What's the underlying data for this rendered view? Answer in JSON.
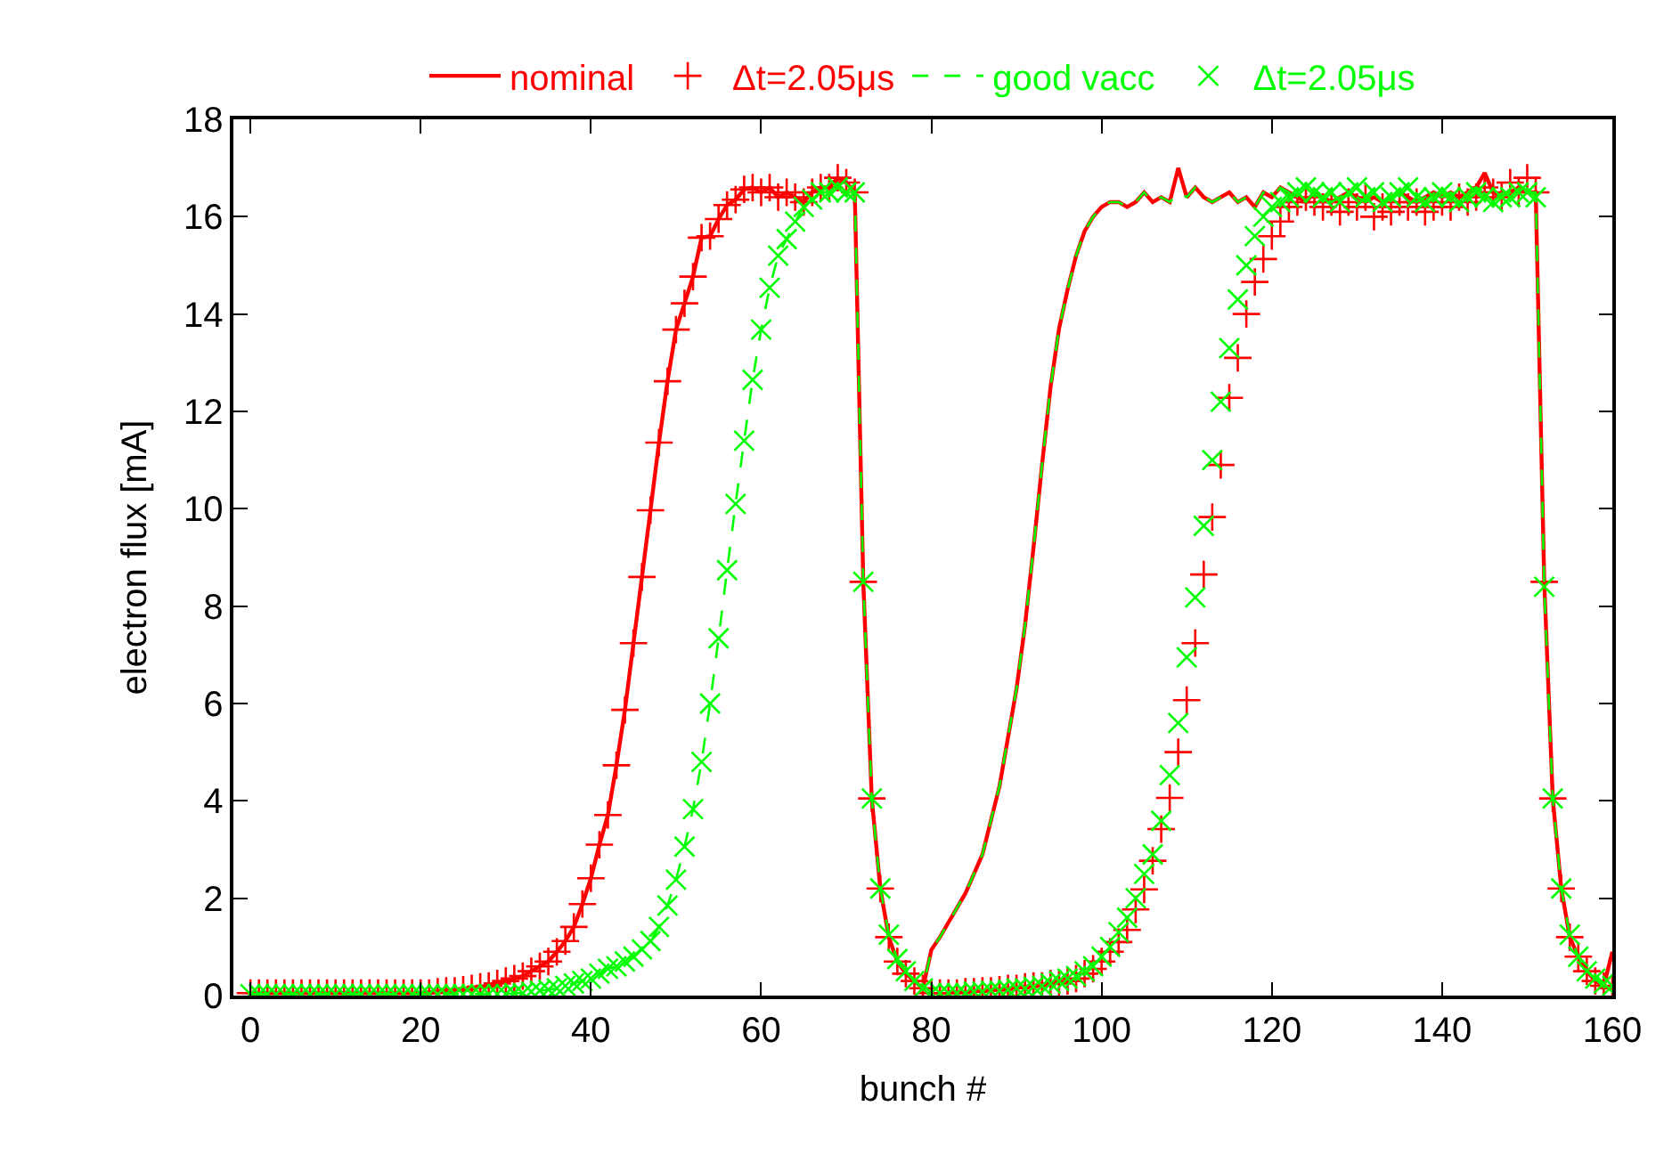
{
  "chart_data": {
    "type": "line",
    "xlabel": "bunch #",
    "ylabel": "electron flux [mA]",
    "xlim": [
      -2,
      160
    ],
    "ylim": [
      0,
      18
    ],
    "xticks": [
      0,
      20,
      40,
      60,
      80,
      100,
      120,
      140,
      160
    ],
    "yticks": [
      0,
      2,
      4,
      6,
      8,
      10,
      12,
      14,
      16,
      18
    ],
    "legend": "top",
    "x": [
      0,
      1,
      2,
      3,
      4,
      5,
      6,
      7,
      8,
      9,
      10,
      11,
      12,
      13,
      14,
      15,
      16,
      17,
      18,
      19,
      20,
      21,
      22,
      23,
      24,
      25,
      26,
      27,
      28,
      29,
      30,
      31,
      32,
      33,
      34,
      35,
      36,
      37,
      38,
      39,
      40,
      41,
      42,
      43,
      44,
      45,
      46,
      47,
      48,
      49,
      50,
      51,
      52,
      53,
      54,
      55,
      56,
      57,
      58,
      59,
      60,
      61,
      62,
      63,
      64,
      65,
      66,
      67,
      68,
      69,
      70,
      71,
      72,
      73,
      74,
      75,
      76,
      77,
      78,
      79,
      80,
      81,
      82,
      83,
      84,
      85,
      86,
      87,
      88,
      89,
      90,
      91,
      92,
      93,
      94,
      95,
      96,
      97,
      98,
      99,
      100,
      101,
      102,
      103,
      104,
      105,
      106,
      107,
      108,
      109,
      110,
      111,
      112,
      113,
      114,
      115,
      116,
      117,
      118,
      119,
      120,
      121,
      122,
      123,
      124,
      125,
      126,
      127,
      128,
      129,
      130,
      131,
      132,
      133,
      134,
      135,
      136,
      137,
      138,
      139,
      140,
      141,
      142,
      143,
      144,
      145,
      146,
      147,
      148,
      149,
      150,
      151,
      152,
      153,
      154,
      155,
      156,
      157,
      158,
      159,
      160
    ],
    "series": [
      {
        "name": "nominal",
        "type": "line",
        "color": "#ff0000",
        "marker": "none",
        "line_style": "solid",
        "values": [
          0.05,
          0.05,
          0.05,
          0.05,
          0.05,
          0.05,
          0.05,
          0.05,
          0.05,
          0.05,
          0.05,
          0.05,
          0.05,
          0.05,
          0.05,
          0.05,
          0.05,
          0.05,
          0.05,
          0.05,
          0.05,
          0.05,
          0.08,
          0.1,
          0.1,
          0.12,
          0.15,
          0.18,
          0.2,
          0.25,
          0.3,
          0.35,
          0.4,
          0.5,
          0.6,
          0.7,
          0.9,
          1.12,
          1.41,
          1.88,
          2.41,
          3.1,
          3.71,
          4.73,
          5.87,
          7.24,
          8.6,
          9.97,
          11.36,
          12.62,
          13.68,
          14.22,
          14.77,
          15.57,
          15.6,
          15.95,
          16.24,
          16.35,
          16.56,
          16.6,
          16.5,
          16.6,
          16.4,
          16.5,
          16.4,
          16.3,
          16.5,
          16.6,
          16.6,
          16.8,
          16.7,
          16.5,
          8.5,
          4.05,
          2.2,
          1.2,
          0.7,
          0.45,
          0.3,
          0.15,
          0.94,
          1.2,
          1.5,
          1.8,
          2.1,
          2.5,
          2.9,
          3.6,
          4.3,
          5.3,
          6.3,
          7.6,
          9.2,
          10.9,
          12.5,
          13.7,
          14.5,
          15.2,
          15.7,
          16.0,
          16.2,
          16.3,
          16.3,
          16.2,
          16.3,
          16.5,
          16.3,
          16.4,
          16.3,
          17.0,
          16.4,
          16.6,
          16.4,
          16.3,
          16.4,
          16.5,
          16.3,
          16.4,
          16.2,
          16.5,
          16.4,
          16.6,
          16.5,
          16.4,
          16.3,
          16.5,
          16.4,
          16.3,
          16.4,
          16.5,
          16.4,
          16.3,
          16.4,
          16.3,
          16.4,
          16.5,
          16.4,
          16.3,
          16.4,
          16.5,
          16.4,
          16.5,
          16.4,
          16.5,
          16.6,
          16.9,
          16.5,
          16.4,
          16.5,
          16.6,
          16.5,
          16.5,
          8.5,
          4.05,
          2.2,
          1.2,
          0.8,
          0.5,
          0.3,
          0.2,
          0.9
        ]
      },
      {
        "name": "Δt=2.05μs",
        "type": "scatter",
        "color": "#ff0000",
        "marker": "cross",
        "values": [
          0.05,
          0.05,
          0.05,
          0.05,
          0.05,
          0.05,
          0.05,
          0.05,
          0.05,
          0.05,
          0.05,
          0.05,
          0.05,
          0.05,
          0.05,
          0.05,
          0.05,
          0.05,
          0.05,
          0.05,
          0.05,
          0.05,
          0.08,
          0.1,
          0.1,
          0.12,
          0.15,
          0.18,
          0.2,
          0.25,
          0.3,
          0.35,
          0.4,
          0.5,
          0.6,
          0.7,
          0.9,
          1.12,
          1.41,
          1.88,
          2.41,
          3.1,
          3.71,
          4.73,
          5.87,
          7.24,
          8.6,
          9.97,
          11.36,
          12.62,
          13.68,
          14.22,
          14.77,
          15.57,
          15.6,
          15.95,
          16.24,
          16.35,
          16.56,
          16.6,
          16.5,
          16.6,
          16.4,
          16.5,
          16.4,
          16.3,
          16.5,
          16.6,
          16.6,
          16.8,
          16.7,
          16.5,
          8.5,
          4.05,
          2.2,
          1.2,
          0.7,
          0.45,
          0.3,
          0.15,
          0.05,
          0.05,
          0.05,
          0.05,
          0.08,
          0.08,
          0.1,
          0.1,
          0.12,
          0.15,
          0.15,
          0.18,
          0.2,
          0.2,
          0.25,
          0.25,
          0.3,
          0.35,
          0.45,
          0.55,
          0.7,
          0.9,
          1.1,
          1.35,
          1.77,
          2.18,
          2.77,
          3.42,
          4.06,
          5.0,
          6.07,
          7.24,
          8.65,
          9.83,
          10.9,
          12.28,
          13.1,
          14.0,
          14.66,
          15.13,
          15.6,
          15.9,
          16.2,
          16.3,
          16.4,
          16.3,
          16.2,
          16.3,
          16.1,
          16.3,
          16.2,
          16.4,
          16.0,
          16.2,
          16.1,
          16.3,
          16.2,
          16.3,
          16.1,
          16.2,
          16.3,
          16.2,
          16.4,
          16.3,
          16.4,
          16.6,
          16.5,
          16.4,
          16.7,
          16.5,
          16.8,
          16.5,
          8.5,
          4.05,
          2.2,
          1.2,
          0.8,
          0.5,
          0.3,
          0.2,
          0.15
        ]
      },
      {
        "name": "good vacc",
        "type": "line",
        "color": "#00ff00",
        "marker": "none",
        "line_style": "dashed",
        "values": [
          0.03,
          0.03,
          0.03,
          0.03,
          0.03,
          0.03,
          0.03,
          0.03,
          0.03,
          0.03,
          0.03,
          0.03,
          0.03,
          0.03,
          0.03,
          0.03,
          0.03,
          0.03,
          0.03,
          0.03,
          0.03,
          0.03,
          0.03,
          0.03,
          0.03,
          0.03,
          0.03,
          0.03,
          0.03,
          0.03,
          0.03,
          0.05,
          0.05,
          0.08,
          0.1,
          0.12,
          0.15,
          0.2,
          0.25,
          0.3,
          0.35,
          0.45,
          0.55,
          0.6,
          0.7,
          0.8,
          0.95,
          1.12,
          1.41,
          1.85,
          2.38,
          3.06,
          3.83,
          4.8,
          6.0,
          7.34,
          8.74,
          10.1,
          11.4,
          12.65,
          13.68,
          14.54,
          15.2,
          15.54,
          15.9,
          16.2,
          16.35,
          16.5,
          16.5,
          16.6,
          16.5,
          16.5,
          8.5,
          4.05,
          2.2,
          1.25,
          0.75,
          0.5,
          0.3,
          0.15,
          0.94,
          1.2,
          1.5,
          1.8,
          2.1,
          2.5,
          2.9,
          3.6,
          4.3,
          5.3,
          6.3,
          7.6,
          9.2,
          10.9,
          12.5,
          13.7,
          14.5,
          15.2,
          15.7,
          16.0,
          16.2,
          16.3,
          16.3,
          16.2,
          16.3,
          16.5,
          16.3,
          16.4,
          16.3,
          16.5,
          16.4,
          16.6,
          16.4,
          16.3,
          16.4,
          16.5,
          16.3,
          16.4,
          16.2,
          16.5,
          16.4,
          16.6,
          16.5,
          16.4,
          16.3,
          16.5,
          16.4,
          16.3,
          16.4,
          16.5,
          16.4,
          16.3,
          16.4,
          16.3,
          16.4,
          16.5,
          16.4,
          16.3,
          16.4,
          16.5,
          16.4,
          16.5,
          16.4,
          16.5,
          16.6,
          16.5,
          16.5,
          16.4,
          16.5,
          16.6,
          16.5,
          16.5,
          8.4,
          4.05,
          2.2,
          1.25,
          0.8,
          0.5,
          0.35,
          0.25,
          0.2
        ]
      },
      {
        "name": "Δt=2.05μs",
        "type": "scatter",
        "color": "#00ff00",
        "marker": "x",
        "values": [
          0.03,
          0.03,
          0.03,
          0.03,
          0.03,
          0.03,
          0.03,
          0.03,
          0.03,
          0.03,
          0.03,
          0.03,
          0.03,
          0.03,
          0.03,
          0.03,
          0.03,
          0.03,
          0.03,
          0.03,
          0.03,
          0.03,
          0.03,
          0.03,
          0.03,
          0.03,
          0.03,
          0.03,
          0.03,
          0.03,
          0.03,
          0.05,
          0.05,
          0.08,
          0.1,
          0.12,
          0.15,
          0.2,
          0.25,
          0.3,
          0.35,
          0.45,
          0.55,
          0.6,
          0.7,
          0.8,
          0.95,
          1.12,
          1.41,
          1.85,
          2.38,
          3.06,
          3.83,
          4.8,
          6.0,
          7.34,
          8.74,
          10.1,
          11.4,
          12.65,
          13.68,
          14.54,
          15.2,
          15.54,
          15.9,
          16.2,
          16.35,
          16.5,
          16.5,
          16.6,
          16.5,
          16.5,
          8.5,
          4.05,
          2.2,
          1.25,
          0.75,
          0.5,
          0.3,
          0.15,
          0.05,
          0.05,
          0.05,
          0.05,
          0.05,
          0.08,
          0.08,
          0.1,
          0.1,
          0.12,
          0.15,
          0.15,
          0.18,
          0.2,
          0.25,
          0.3,
          0.35,
          0.4,
          0.5,
          0.6,
          0.8,
          1.0,
          1.3,
          1.6,
          2.0,
          2.5,
          2.9,
          3.59,
          4.53,
          5.6,
          6.95,
          8.18,
          9.65,
          11.0,
          12.2,
          13.3,
          14.3,
          15.0,
          15.6,
          16.0,
          16.2,
          16.3,
          16.4,
          16.5,
          16.6,
          16.5,
          16.4,
          16.5,
          16.3,
          16.5,
          16.6,
          16.4,
          16.5,
          16.3,
          16.4,
          16.5,
          16.6,
          16.4,
          16.3,
          16.4,
          16.5,
          16.4,
          16.3,
          16.4,
          16.5,
          16.4,
          16.3,
          16.4,
          16.4,
          16.5,
          16.5,
          16.4,
          8.4,
          4.05,
          2.2,
          1.25,
          0.8,
          0.5,
          0.35,
          0.25,
          0.2
        ]
      }
    ]
  }
}
